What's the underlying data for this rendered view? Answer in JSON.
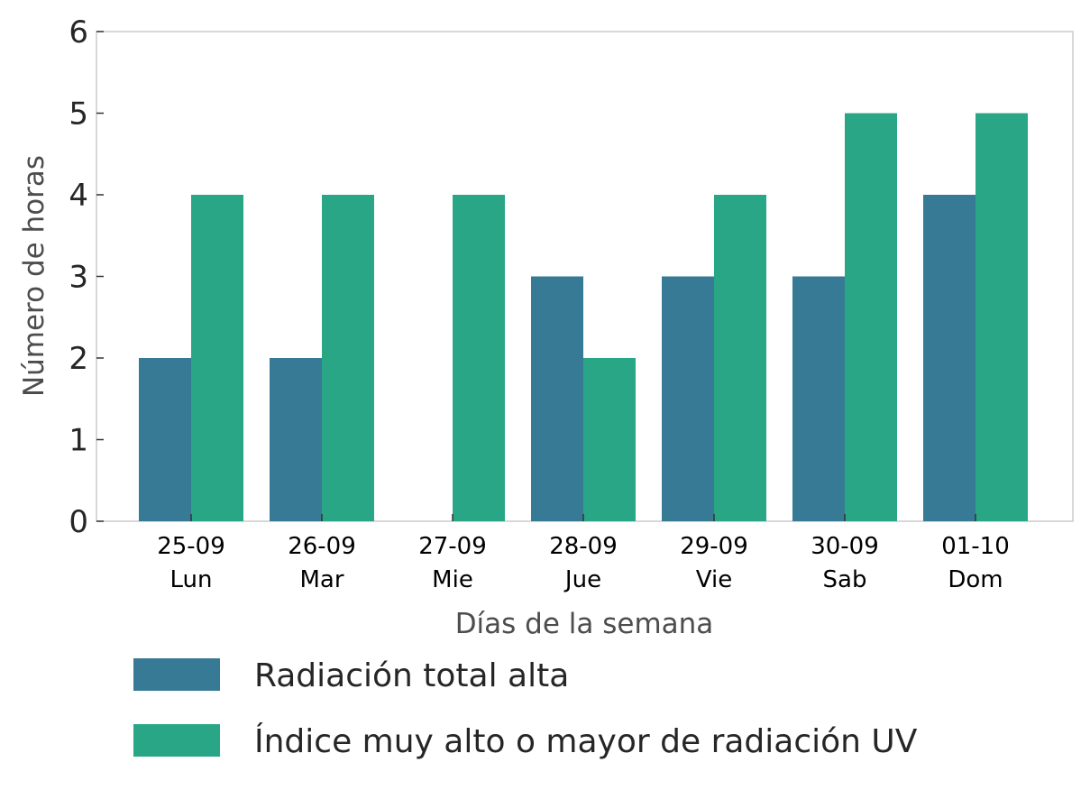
{
  "chart_data": {
    "type": "bar",
    "categories": [
      [
        "25-09",
        "Lun"
      ],
      [
        "26-09",
        "Mar"
      ],
      [
        "27-09",
        "Mie"
      ],
      [
        "28-09",
        "Jue"
      ],
      [
        "29-09",
        "Vie"
      ],
      [
        "30-09",
        "Sab"
      ],
      [
        "01-10",
        "Dom"
      ]
    ],
    "series": [
      {
        "name": "Radiación total alta",
        "color": "#377a95",
        "values": [
          2,
          2,
          0,
          3,
          3,
          3,
          4
        ]
      },
      {
        "name": "Índice muy alto o mayor de radiación UV",
        "color": "#28a686",
        "values": [
          4,
          4,
          4,
          2,
          4,
          5,
          5
        ]
      }
    ],
    "xlabel": "Días de la semana",
    "ylabel": "Número de horas",
    "ylim": [
      0,
      6
    ],
    "yticks": [
      0,
      1,
      2,
      3,
      4,
      5,
      6
    ],
    "grid": false,
    "legend_position": "bottom"
  }
}
